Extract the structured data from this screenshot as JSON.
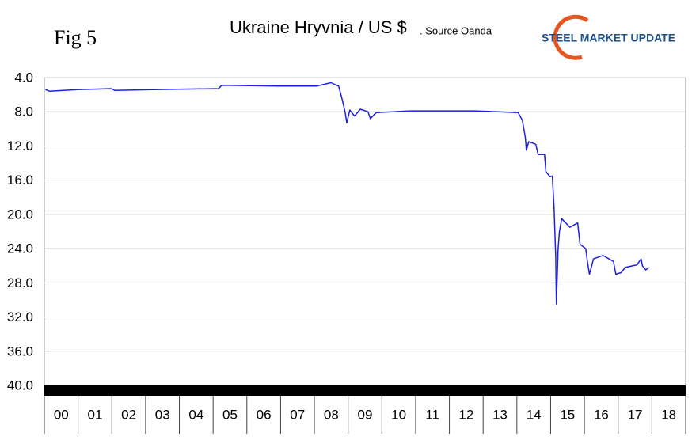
{
  "header": {
    "figure": "Fig 5",
    "logo": "STEEL MARKET UPDATE"
  },
  "chart_data": {
    "type": "line",
    "title": "Ukraine Hryvnia / US $",
    "subtitle": ". Source Oanda",
    "color": "#1f1fe0",
    "x": [
      2000.03,
      2000.15,
      2001.04,
      2001.98,
      2002.09,
      2003.38,
      2005.16,
      2005.26,
      2006.9,
      2008.07,
      2008.49,
      2008.72,
      2008.82,
      2008.91,
      2008.96,
      2009.05,
      2009.19,
      2009.36,
      2009.59,
      2009.66,
      2009.83,
      2010.88,
      2012.75,
      2014.04,
      2014.16,
      2014.25,
      2014.28,
      2014.35,
      2014.56,
      2014.63,
      2014.82,
      2014.86,
      2014.98,
      2015.05,
      2015.1,
      2015.15,
      2015.17,
      2015.22,
      2015.26,
      2015.33,
      2015.57,
      2015.8,
      2015.87,
      2016.04,
      2016.09,
      2016.15,
      2016.27,
      2016.55,
      2016.86,
      2016.93,
      2017.09,
      2017.21,
      2017.56,
      2017.68,
      2017.72,
      2017.82,
      2017.91
    ],
    "values": [
      5.4,
      5.6,
      5.4,
      5.3,
      5.5,
      5.4,
      5.3,
      4.9,
      5.0,
      5.0,
      4.6,
      5.0,
      6.5,
      8.0,
      9.3,
      7.8,
      8.5,
      7.7,
      8.0,
      8.8,
      8.1,
      7.9,
      7.9,
      8.1,
      9.0,
      11.0,
      12.5,
      11.5,
      11.8,
      13.0,
      13.0,
      15.0,
      15.6,
      15.5,
      19.0,
      25.0,
      30.5,
      24.0,
      22.0,
      20.5,
      21.5,
      21.0,
      23.5,
      24.0,
      25.5,
      27.0,
      25.2,
      24.8,
      25.5,
      27.0,
      26.8,
      26.2,
      25.9,
      25.2,
      26.0,
      26.5,
      26.2
    ],
    "xlim": [
      2000,
      2019
    ],
    "xticks": [
      {
        "value": 2000,
        "label": "00"
      },
      {
        "value": 2001,
        "label": "01"
      },
      {
        "value": 2002,
        "label": "02"
      },
      {
        "value": 2003,
        "label": "03"
      },
      {
        "value": 2004,
        "label": "04"
      },
      {
        "value": 2005,
        "label": "05"
      },
      {
        "value": 2006,
        "label": "06"
      },
      {
        "value": 2007,
        "label": "07"
      },
      {
        "value": 2008,
        "label": "08"
      },
      {
        "value": 2009,
        "label": "09"
      },
      {
        "value": 2010,
        "label": "10"
      },
      {
        "value": 2011,
        "label": "11"
      },
      {
        "value": 2012,
        "label": "12"
      },
      {
        "value": 2013,
        "label": "13"
      },
      {
        "value": 2014,
        "label": "14"
      },
      {
        "value": 2015,
        "label": "15"
      },
      {
        "value": 2016,
        "label": "16"
      },
      {
        "value": 2017,
        "label": "17"
      },
      {
        "value": 2018,
        "label": "18"
      }
    ],
    "ylim": [
      4,
      40
    ],
    "yticks": [
      {
        "value": 4,
        "label": "4.0"
      },
      {
        "value": 8,
        "label": "8.0"
      },
      {
        "value": 12,
        "label": "12.0"
      },
      {
        "value": 16,
        "label": "16.0"
      },
      {
        "value": 20,
        "label": "20.0"
      },
      {
        "value": 24,
        "label": "24.0"
      },
      {
        "value": 28,
        "label": "28.0"
      },
      {
        "value": 32,
        "label": "32.0"
      },
      {
        "value": 36,
        "label": "36.0"
      },
      {
        "value": 40,
        "label": "40.0"
      }
    ],
    "y_inverted": true,
    "grid": true
  }
}
